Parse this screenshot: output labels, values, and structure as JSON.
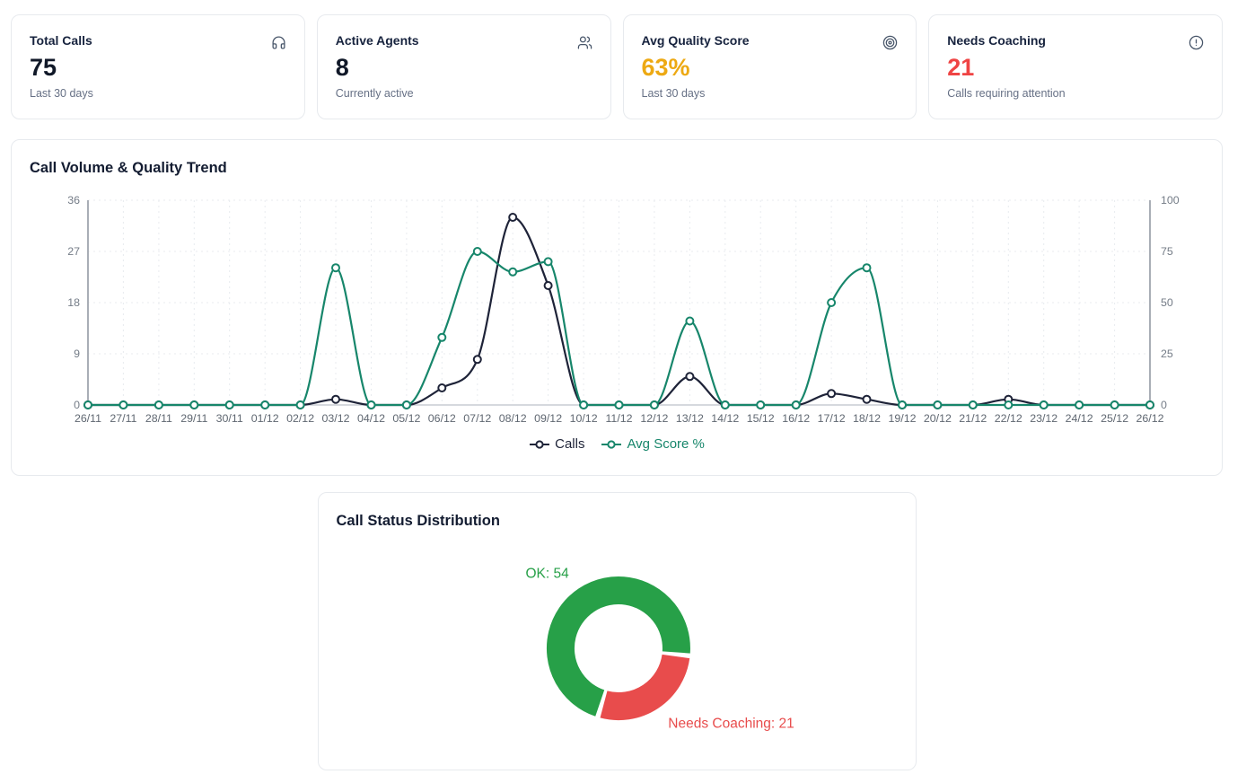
{
  "kpi_cards": [
    {
      "title": "Total Calls",
      "value": "75",
      "subtitle": "Last 30 days",
      "icon": "headphones-icon",
      "value_color": "#101828"
    },
    {
      "title": "Active Agents",
      "value": "8",
      "subtitle": "Currently active",
      "icon": "users-icon",
      "value_color": "#101828"
    },
    {
      "title": "Avg Quality Score",
      "value": "63%",
      "subtitle": "Last 30 days",
      "icon": "target-icon",
      "value_color": "#eda913"
    },
    {
      "title": "Needs Coaching",
      "value": "21",
      "subtitle": "Calls requiring attention",
      "icon": "alert-circle-icon",
      "value_color": "#ef4444"
    }
  ],
  "chart_data": [
    {
      "type": "line",
      "title": "Call Volume & Quality Trend",
      "x": [
        "26/11",
        "27/11",
        "28/11",
        "29/11",
        "30/11",
        "01/12",
        "02/12",
        "03/12",
        "04/12",
        "05/12",
        "06/12",
        "07/12",
        "08/12",
        "09/12",
        "10/12",
        "11/12",
        "12/12",
        "13/12",
        "14/12",
        "15/12",
        "16/12",
        "17/12",
        "18/12",
        "19/12",
        "20/12",
        "21/12",
        "22/12",
        "23/12",
        "24/12",
        "25/12",
        "26/12"
      ],
      "series": [
        {
          "name": "Calls",
          "axis": "left",
          "color": "#1e2338",
          "values": [
            0,
            0,
            0,
            0,
            0,
            0,
            0,
            1,
            0,
            0,
            3,
            8,
            33,
            21,
            0,
            0,
            0,
            5,
            0,
            0,
            0,
            2,
            1,
            0,
            0,
            0,
            1,
            0,
            0,
            0,
            0
          ]
        },
        {
          "name": "Avg Score %",
          "axis": "right",
          "color": "#17866b",
          "values": [
            0,
            0,
            0,
            0,
            0,
            0,
            0,
            67,
            0,
            0,
            33,
            75,
            65,
            70,
            0,
            0,
            0,
            41,
            0,
            0,
            0,
            50,
            67,
            0,
            0,
            0,
            0,
            0,
            0,
            0,
            0
          ]
        }
      ],
      "left_axis": {
        "range": [
          0,
          36
        ],
        "ticks": [
          0,
          9,
          18,
          27,
          36
        ]
      },
      "right_axis": {
        "range": [
          0,
          100
        ],
        "ticks": [
          0,
          25,
          50,
          75,
          100
        ]
      },
      "grid": "dotted",
      "legend_position": "bottom"
    },
    {
      "type": "pie",
      "title": "Call Status Distribution",
      "donut": true,
      "total": 75,
      "rotation_deg": 196.8,
      "slices": [
        {
          "label": "OK",
          "value": 54,
          "color": "#27a048",
          "label_text": "OK: 54"
        },
        {
          "label": "Needs Coaching",
          "value": 21,
          "color": "#e84c4c",
          "label_text": "Needs Coaching: 21"
        }
      ]
    }
  ]
}
